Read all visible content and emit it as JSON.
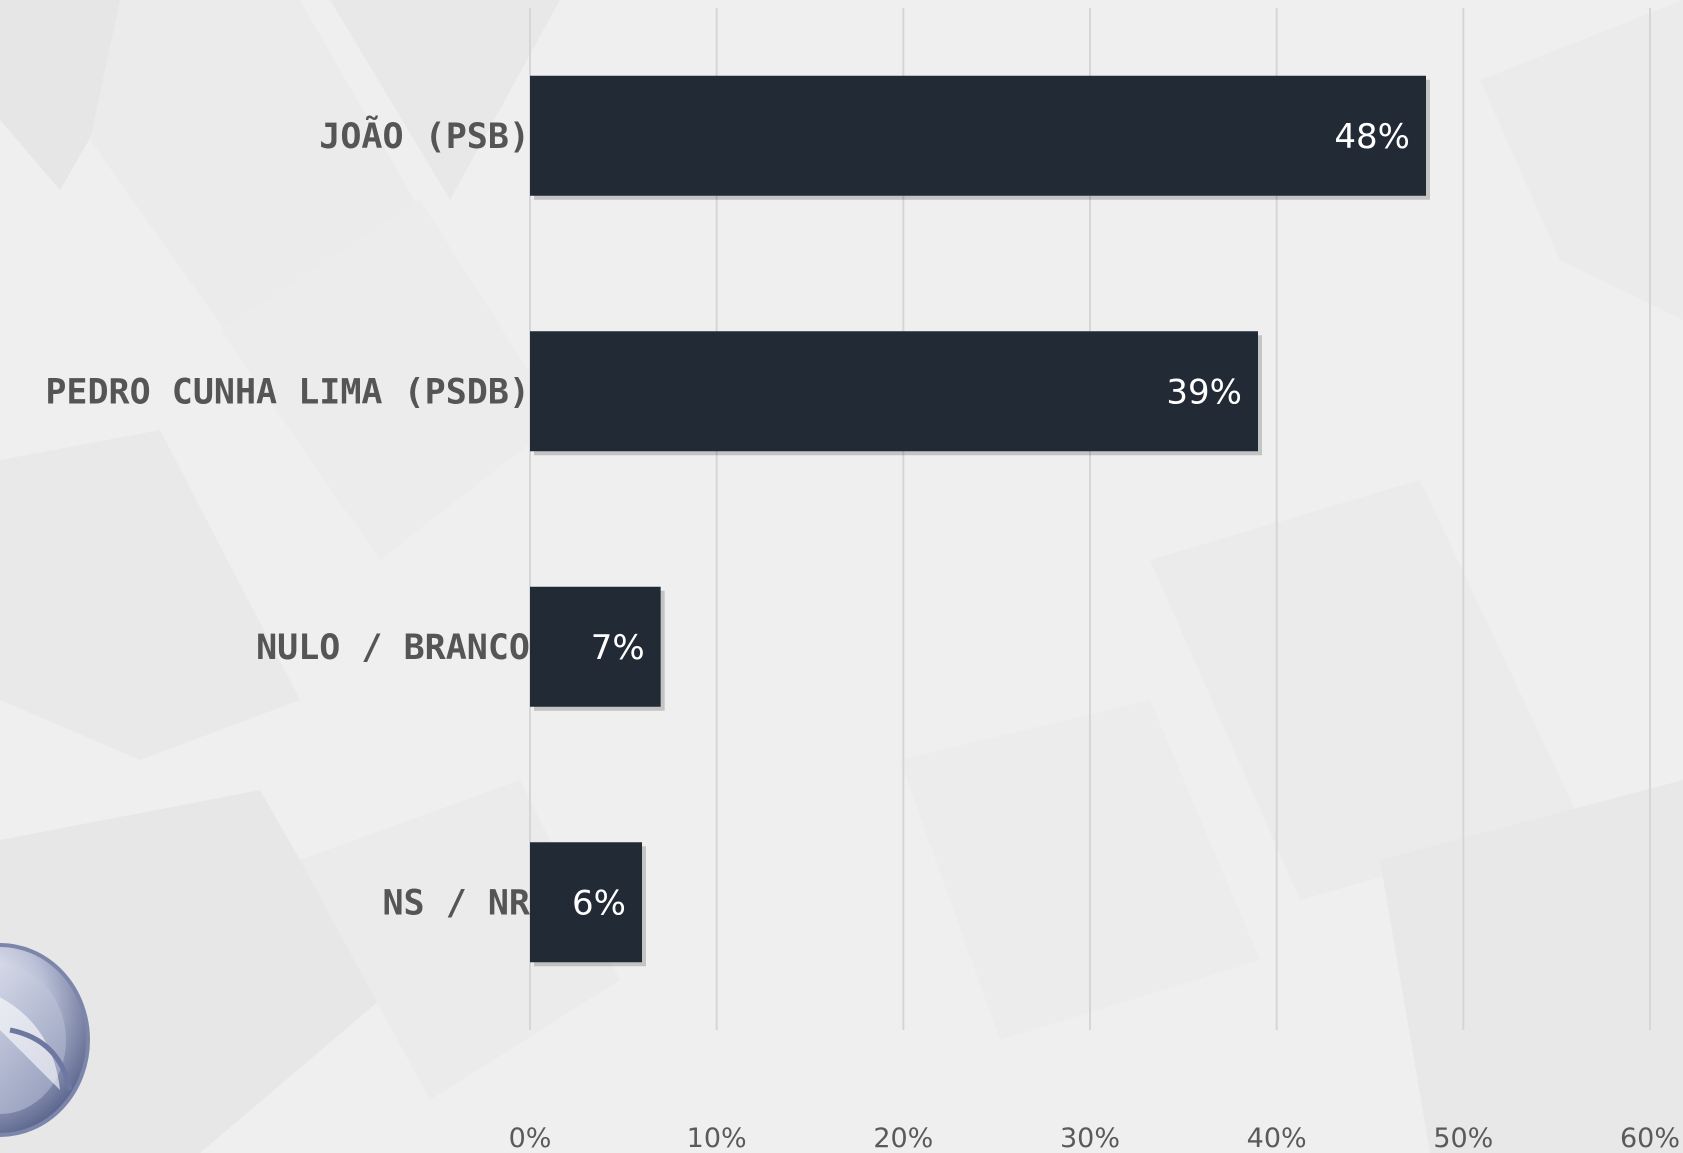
{
  "chart_data": {
    "type": "bar",
    "orientation": "horizontal",
    "title": "",
    "xlabel": "",
    "ylabel": "",
    "categories": [
      "JOÃO (PSB)",
      "PEDRO CUNHA LIMA (PSDB)",
      "NULO / BRANCO",
      "NS / NR"
    ],
    "values": [
      48,
      39,
      7,
      6
    ],
    "value_labels": [
      "48%",
      "39%",
      "7%",
      "6%"
    ],
    "xlim": [
      0,
      60
    ],
    "ticks": [
      0,
      10,
      20,
      30,
      40,
      50,
      60
    ],
    "tick_labels": [
      "0%",
      "10%",
      "20%",
      "30%",
      "40%",
      "50%",
      "60%"
    ],
    "grid": "vertical",
    "legend": "none"
  },
  "colors": {
    "bar": "#222a36",
    "background": "#efefef",
    "gridline": "#d6d6d6",
    "category_text": "#555555"
  },
  "icons": {
    "logo": "broadcaster-logo"
  }
}
